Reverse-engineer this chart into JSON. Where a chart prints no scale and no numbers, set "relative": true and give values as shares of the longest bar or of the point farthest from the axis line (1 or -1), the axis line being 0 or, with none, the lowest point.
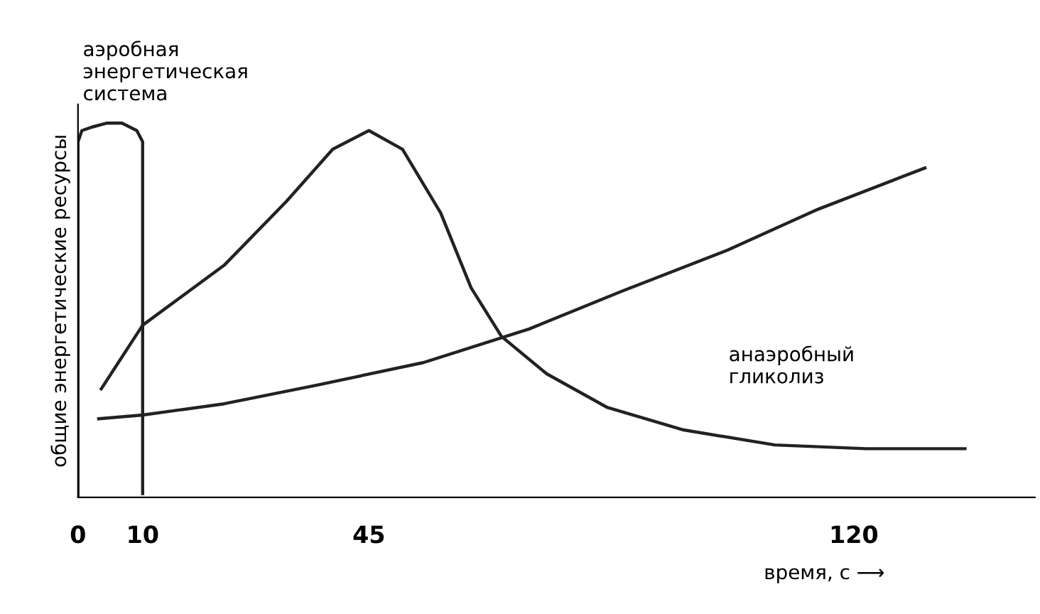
{
  "chart_data": {
    "type": "line",
    "relative": true,
    "xlabel": "время, с ⟶",
    "ylabel": "общие энергетические ресурсы",
    "xlim": [
      0,
      148
    ],
    "xticks": [
      0,
      10,
      45,
      120
    ],
    "grid": false,
    "marker": "none",
    "line_style": "solid",
    "series": [
      {
        "color": "#222222",
        "x": [
          0,
          0,
          0.6,
          2.3,
          4.5,
          6.8,
          9.1,
          10,
          10
        ],
        "values": [
          0,
          0.95,
          0.98,
          0.99,
          1.0,
          1.0,
          0.98,
          0.95,
          0.01
        ]
      },
      {
        "color": "#222222",
        "x": [
          3.6,
          10,
          22.6,
          32.2,
          39.4,
          45,
          50.2,
          56.1,
          60.8,
          65.5,
          72.5,
          81.9,
          93.7,
          107.8,
          121.9,
          137.2
        ],
        "values": [
          0.29,
          0.46,
          0.62,
          0.79,
          0.93,
          0.98,
          0.93,
          0.76,
          0.56,
          0.43,
          0.33,
          0.24,
          0.18,
          0.14,
          0.13,
          0.13
        ]
      },
      {
        "color": "#222222",
        "x": [
          3.2,
          10,
          22.6,
          37,
          53.4,
          69.8,
          84,
          100.4,
          114.5,
          131
        ],
        "values": [
          0.21,
          0.22,
          0.25,
          0.3,
          0.36,
          0.45,
          0.55,
          0.66,
          0.77,
          0.88
        ]
      }
    ],
    "annotations": [
      "аэробная\nэнергетическая\nсистема",
      "анаэробный\nгликолиз"
    ]
  }
}
